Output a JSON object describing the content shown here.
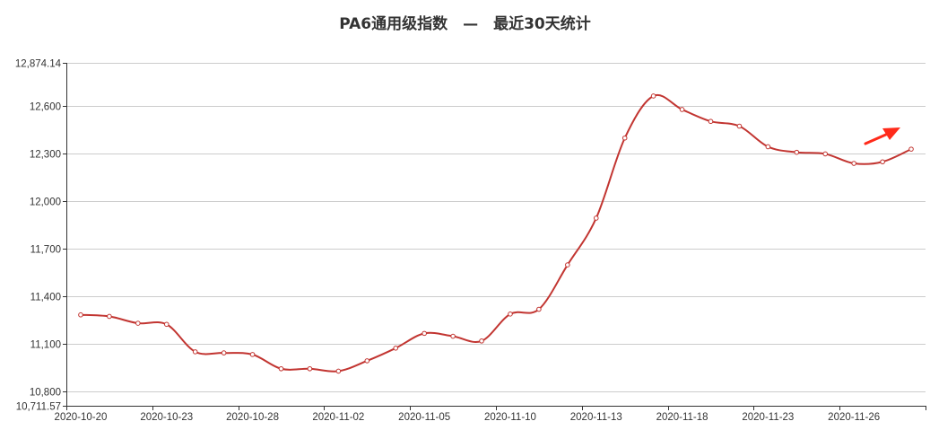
{
  "chart_data": {
    "type": "line",
    "title": "PA6通用级指数　—　最近30天统计",
    "xlabel": "",
    "ylabel": "",
    "ylim": [
      10711.57,
      12874.14
    ],
    "y_ticks": [
      10711.57,
      10800,
      11100,
      11400,
      11700,
      12000,
      12300,
      12600,
      12874.14
    ],
    "y_tick_labels": [
      "10,711.57",
      "10,800",
      "11,100",
      "11,400",
      "11,700",
      "12,000",
      "12,300",
      "12,600",
      "12,874.14"
    ],
    "x_tick_labels": [
      "2020-10-20",
      "2020-10-23",
      "2020-10-28",
      "2020-11-02",
      "2020-11-05",
      "2020-11-10",
      "2020-11-13",
      "2020-11-18",
      "2020-11-23",
      "2020-11-26"
    ],
    "grid": true,
    "line_color": "#c23531",
    "arrow_color": "#ff2a1a",
    "series": [
      {
        "values": [
          11285,
          11275,
          11232,
          11225,
          11052,
          11045,
          11035,
          10945,
          10945,
          10930,
          10995,
          11075,
          11168,
          11150,
          11120,
          11290,
          11320,
          11600,
          11895,
          12400,
          12665,
          12580,
          12505,
          12475,
          12345,
          12310,
          12300,
          12240,
          12250,
          12330
        ]
      }
    ]
  }
}
